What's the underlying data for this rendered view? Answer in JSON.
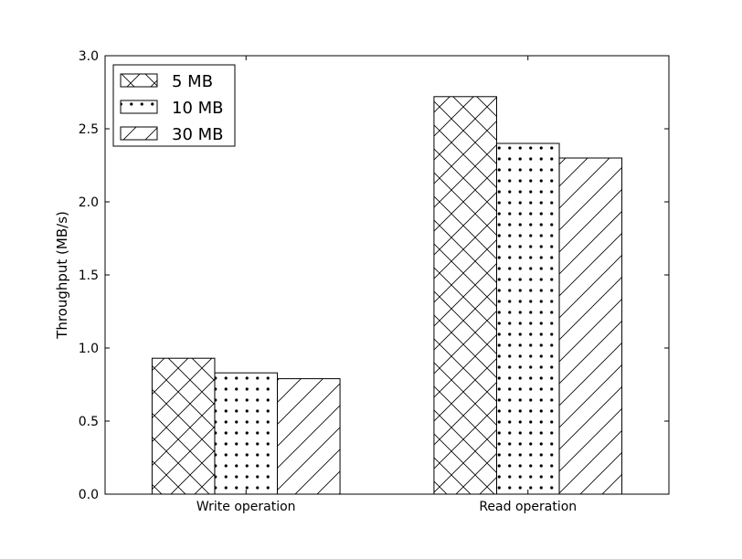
{
  "chart_data": {
    "type": "bar",
    "title": "",
    "xlabel": "",
    "ylabel": "Throughput (MB/s)",
    "categories": [
      "Write operation",
      "Read operation"
    ],
    "series": [
      {
        "name": "5 MB",
        "values": [
          0.93,
          2.72
        ],
        "hatch": "crosshatch"
      },
      {
        "name": "10 MB",
        "values": [
          0.83,
          2.4
        ],
        "hatch": "dots"
      },
      {
        "name": "30 MB",
        "values": [
          0.79,
          2.3
        ],
        "hatch": "diagonal"
      }
    ],
    "ylim": [
      0,
      3.0
    ],
    "yticks": [
      "0.0",
      "0.5",
      "1.0",
      "1.5",
      "2.0",
      "2.5",
      "3.0"
    ],
    "grid": false,
    "legend_position": "top-left",
    "colors": {
      "bar_fill": "#ffffff",
      "bar_edge": "#000000",
      "hatch": "#000000"
    }
  }
}
